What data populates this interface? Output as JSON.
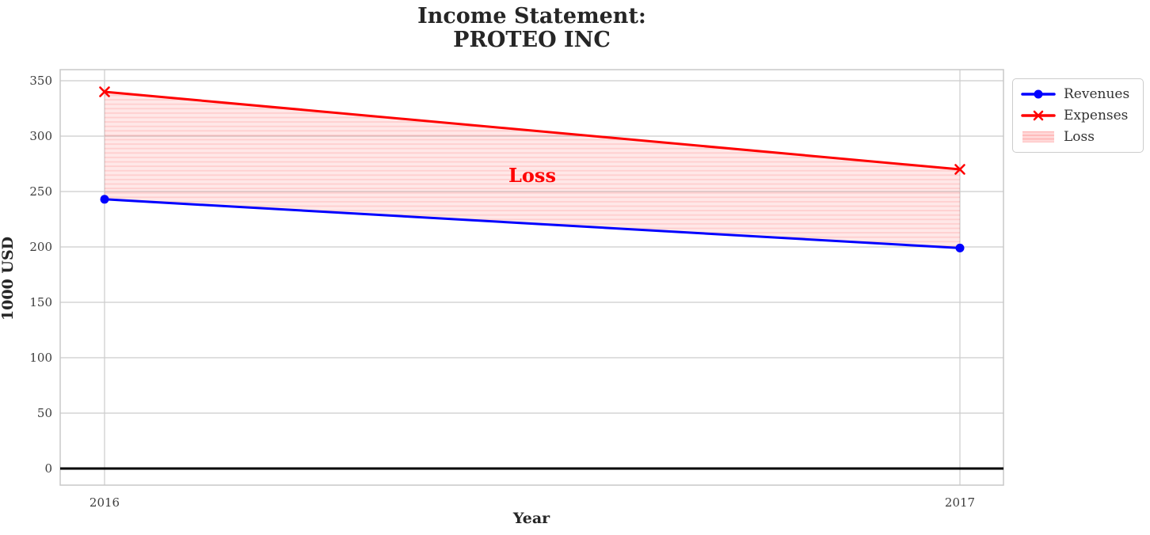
{
  "chart_data": {
    "type": "line",
    "title": "Income Statement:\nPROTEO INC",
    "title_lines": [
      "Income Statement:",
      "PROTEO INC"
    ],
    "xlabel": "Year",
    "ylabel": "1000 USD",
    "x": [
      2016,
      2017
    ],
    "x_tick_labels": [
      "2016",
      "2017"
    ],
    "y_ticks": [
      0,
      50,
      100,
      150,
      200,
      250,
      300,
      350
    ],
    "ylim": [
      -15,
      360
    ],
    "grid": true,
    "series": [
      {
        "name": "Revenues",
        "values": [
          243,
          199
        ],
        "color": "#0000ff",
        "marker": "circle",
        "line_width": 3
      },
      {
        "name": "Expenses",
        "values": [
          340,
          270
        ],
        "color": "#ff0000",
        "marker": "x",
        "line_width": 3
      }
    ],
    "loss_region": {
      "label": "Loss",
      "between": [
        "Revenues",
        "Expenses"
      ],
      "hatch": "horizontal-lines",
      "fill_color": "#ff0000",
      "fill_base_opacity": 0.09,
      "fill_stripe_opacity": 0.11
    },
    "annotation": {
      "text": "Loss",
      "x": 2016.5,
      "y": 264,
      "color": "#ff0000"
    },
    "zero_line": {
      "y": 0,
      "color": "#000000"
    },
    "legend": {
      "position": "outside-upper-right",
      "items": [
        {
          "label": "Revenues",
          "swatch": "blue-line-circle-marker"
        },
        {
          "label": "Expenses",
          "swatch": "red-line-x-marker"
        },
        {
          "label": "Loss",
          "swatch": "pink-hatched-patch"
        }
      ]
    },
    "colors": {
      "grid": "#cccccc",
      "spine": "#c8c8c8",
      "tick_text": "#3d3d3d",
      "title_text": "#262626"
    }
  }
}
